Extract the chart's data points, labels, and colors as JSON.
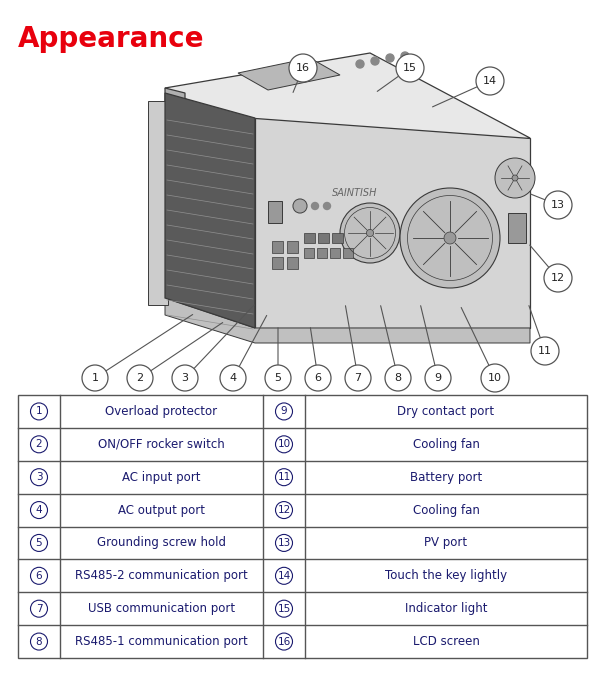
{
  "title": "Appearance",
  "title_color": "#e8000d",
  "title_fontsize": 20,
  "bg_color": "#ffffff",
  "table_text_color": "#1a1a6e",
  "table_border_color": "#555555",
  "left_items": [
    {
      "num": "1",
      "desc": "Overload protector"
    },
    {
      "num": "2",
      "desc": "ON/OFF rocker switch"
    },
    {
      "num": "3",
      "desc": "AC input port"
    },
    {
      "num": "4",
      "desc": "AC output port"
    },
    {
      "num": "5",
      "desc": "Grounding screw hold"
    },
    {
      "num": "6",
      "desc": "RS485-2 communication port"
    },
    {
      "num": "7",
      "desc": "USB communication port"
    },
    {
      "num": "8",
      "desc": "RS485-1 communication port"
    }
  ],
  "right_items": [
    {
      "num": "9",
      "desc": "Dry contact port"
    },
    {
      "num": "10",
      "desc": "Cooling fan"
    },
    {
      "num": "11",
      "desc": "Battery port"
    },
    {
      "num": "12",
      "desc": "Cooling fan"
    },
    {
      "num": "13",
      "desc": "PV port"
    },
    {
      "num": "14",
      "desc": "Touch the key lightly"
    },
    {
      "num": "15",
      "desc": "Indicator light"
    },
    {
      "num": "16",
      "desc": "LCD screen"
    }
  ]
}
